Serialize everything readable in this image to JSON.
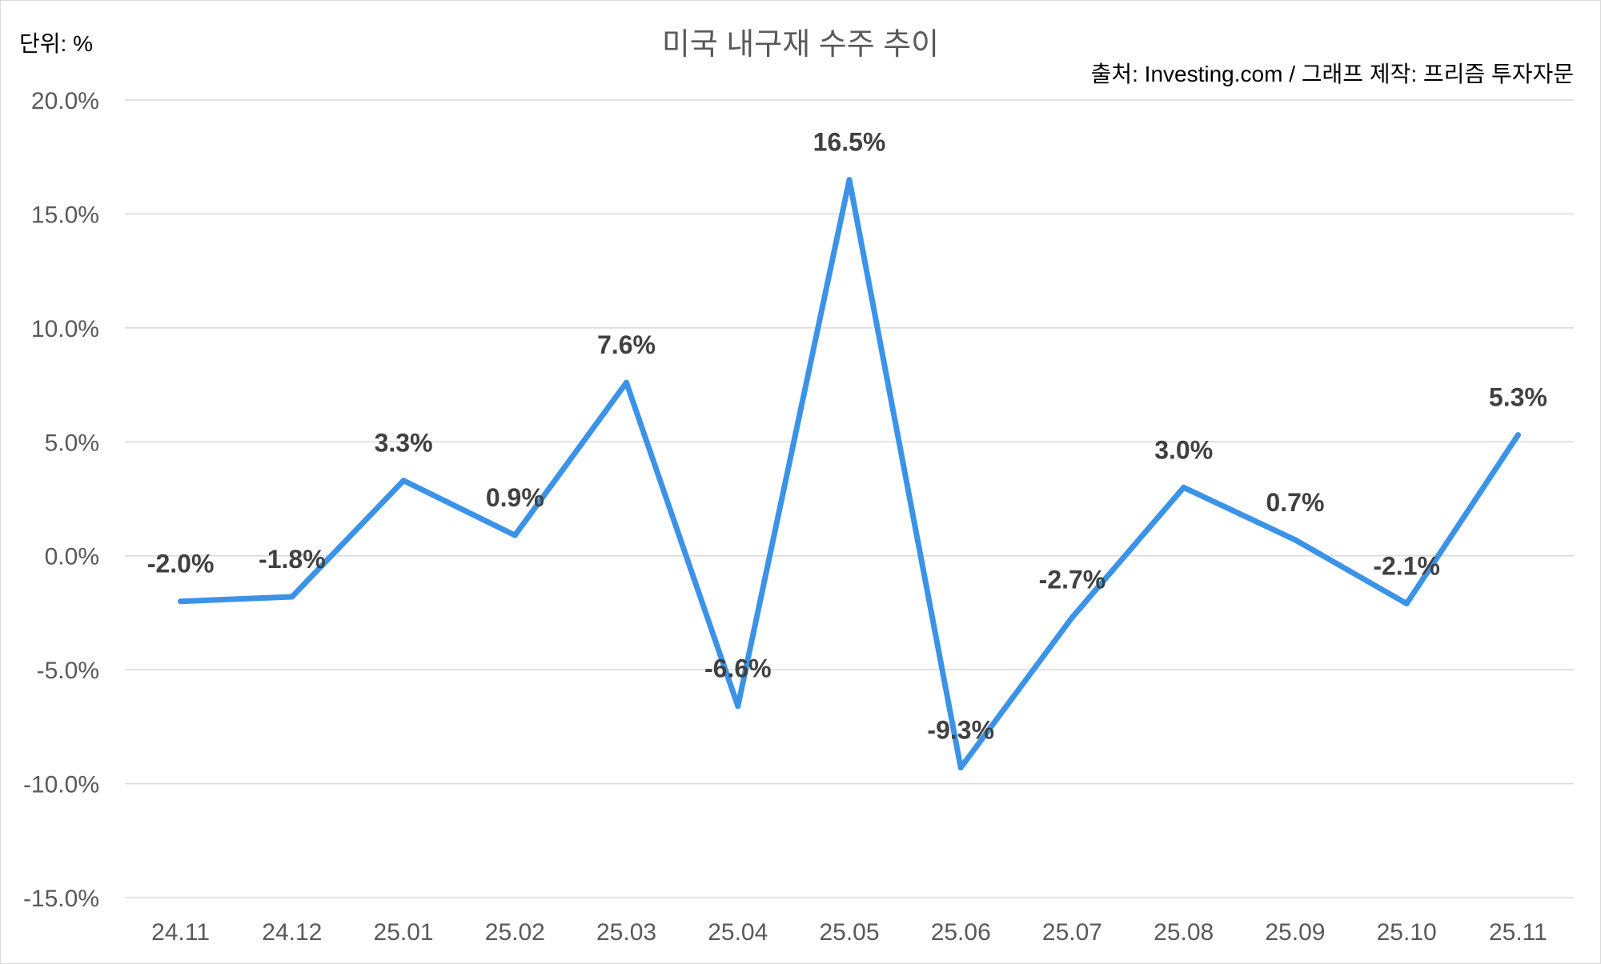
{
  "chart_data": {
    "type": "line",
    "title": "미국 내구재 수주 추이",
    "unit_label": "단위: %",
    "source_label": "출처: Investing.com / 그래프 제작: 프리즘 투자자문",
    "categories": [
      "24.11",
      "24.12",
      "25.01",
      "25.02",
      "25.03",
      "25.04",
      "25.05",
      "25.06",
      "25.07",
      "25.08",
      "25.09",
      "25.10",
      "25.11"
    ],
    "values": [
      -2.0,
      -1.8,
      3.3,
      0.9,
      7.6,
      -6.6,
      16.5,
      -9.3,
      -2.7,
      3.0,
      0.7,
      -2.1,
      5.3
    ],
    "data_labels": [
      "-2.0%",
      "-1.8%",
      "3.3%",
      "0.9%",
      "7.6%",
      "-6.6%",
      "16.5%",
      "-9.3%",
      "-2.7%",
      "3.0%",
      "0.7%",
      "-2.1%",
      "5.3%"
    ],
    "y_ticks": [
      20,
      15,
      10,
      5,
      0,
      -5,
      -10,
      -15
    ],
    "y_tick_labels": [
      "20.0%",
      "15.0%",
      "10.0%",
      "5.0%",
      "0.0%",
      "-5.0%",
      "-10.0%",
      "-15.0%"
    ],
    "ylim": [
      -15,
      20
    ],
    "grid": true,
    "legend": "none",
    "colors": {
      "line": "#3b93e8",
      "grid": "#d9d9d9",
      "tick_text": "#595959",
      "label_text": "#404040",
      "title_text": "#595959",
      "meta_text": "#000000"
    }
  }
}
